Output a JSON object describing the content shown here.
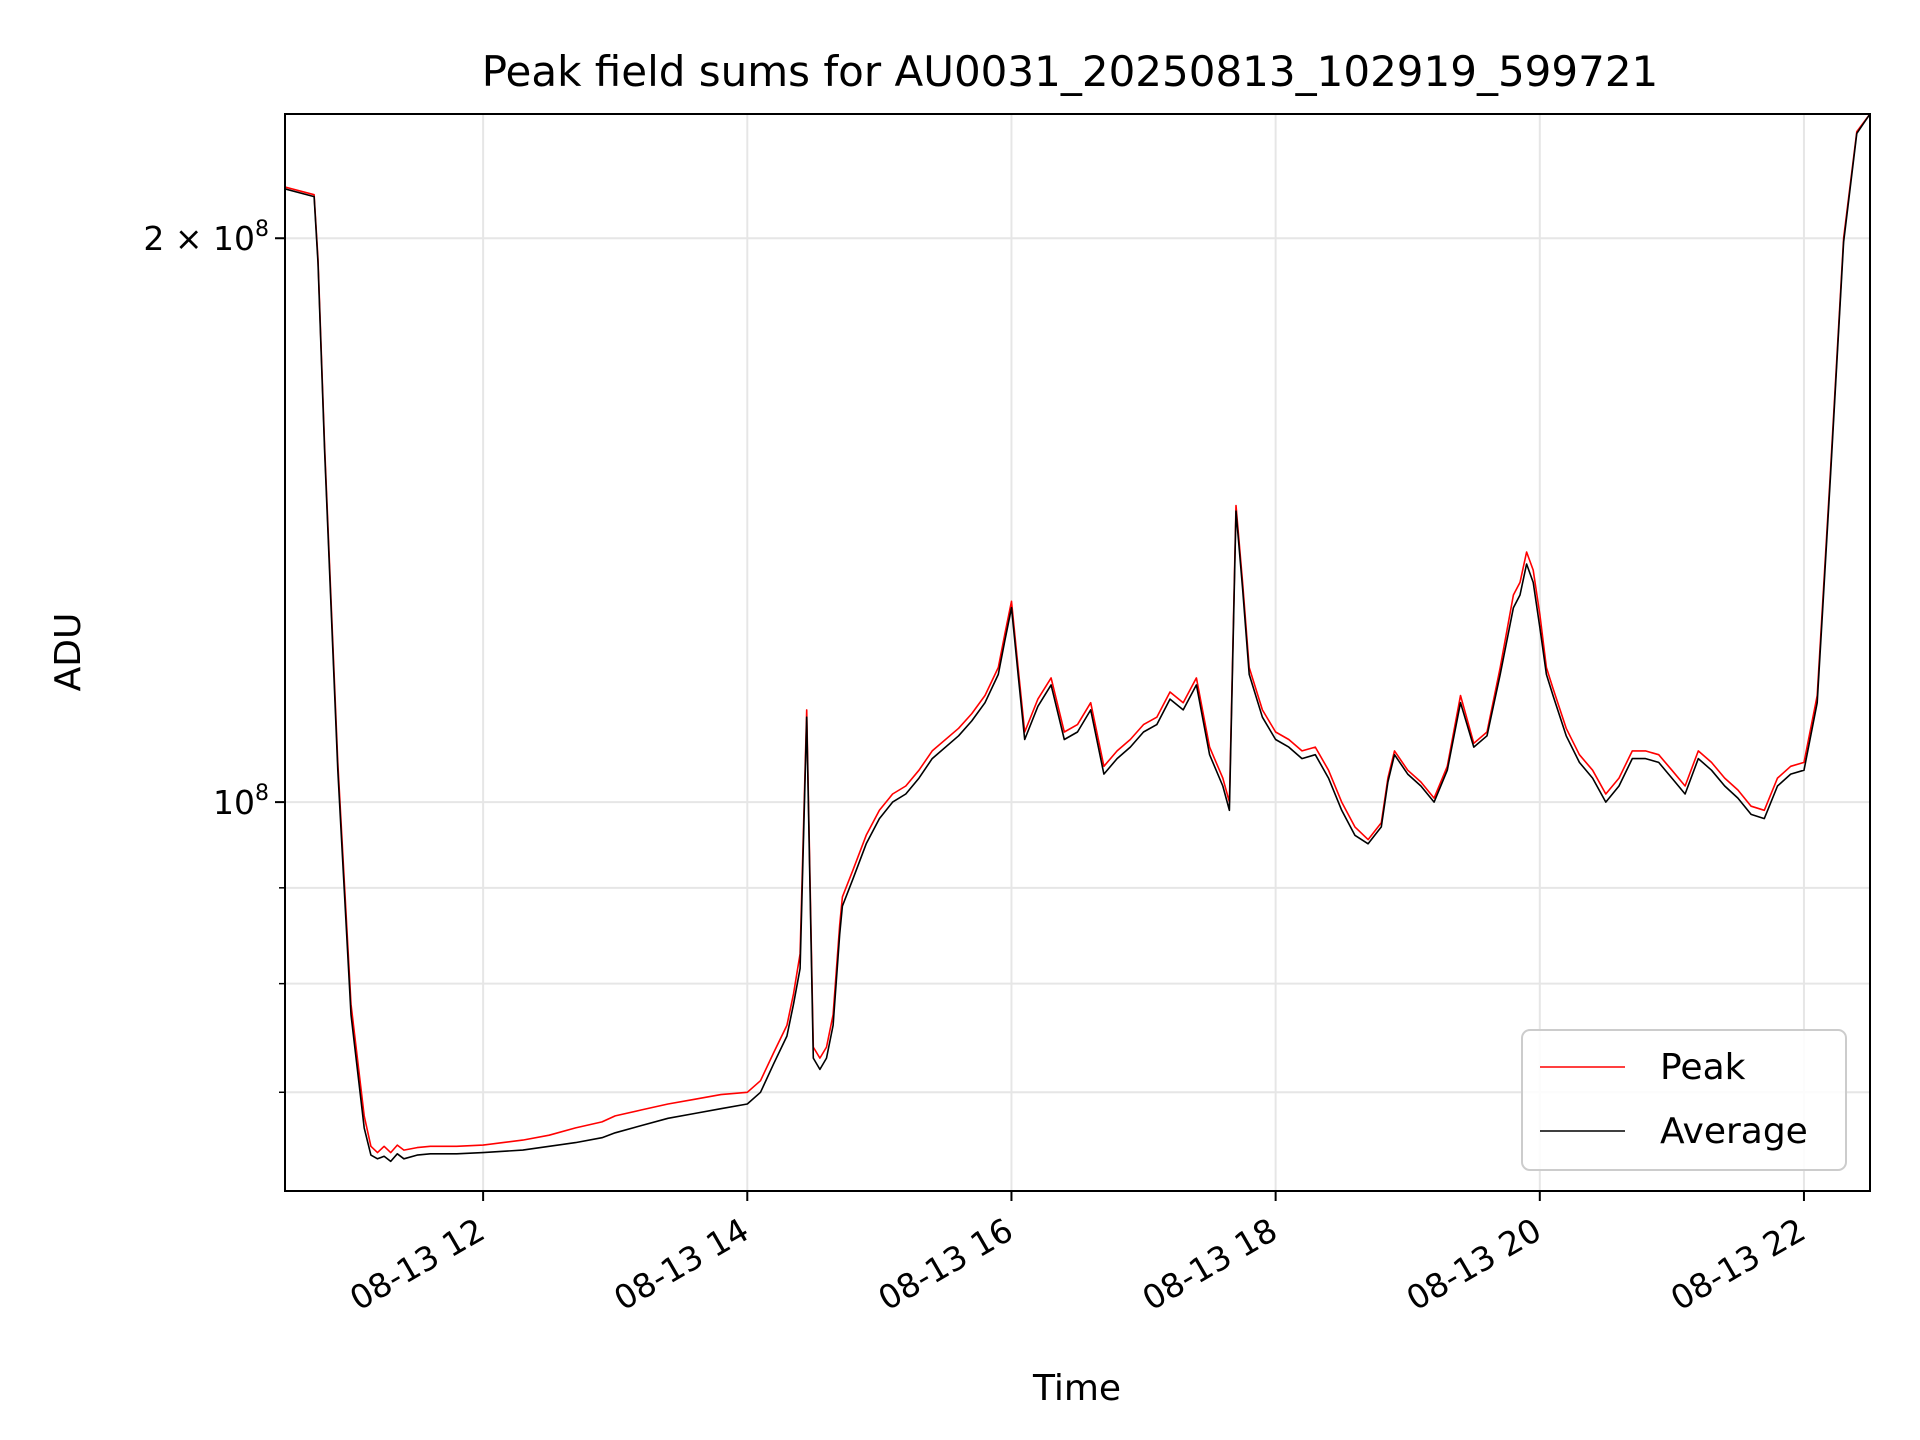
{
  "chart_data": {
    "type": "line",
    "title": "Peak field sums for AU0031_20250813_102919_599721",
    "xlabel": "Time",
    "ylabel": "ADU",
    "x_unit": "hours (time of day, 2025-08-13)",
    "xlim": [
      10.5,
      22.5
    ],
    "ylim": [
      62000000,
      233000000
    ],
    "yscale": "log",
    "grid": true,
    "legend_position": "lower right",
    "xticks": [
      {
        "value": 12,
        "label": "08-13 12"
      },
      {
        "value": 14,
        "label": "08-13 14"
      },
      {
        "value": 16,
        "label": "08-13 16"
      },
      {
        "value": 18,
        "label": "08-13 18"
      },
      {
        "value": 20,
        "label": "08-13 20"
      },
      {
        "value": 22,
        "label": "08-13 22"
      }
    ],
    "yticks_major": [
      {
        "value": 100000000,
        "base": "10",
        "exp": "8",
        "prefix": ""
      },
      {
        "value": 200000000,
        "base": "10",
        "exp": "8",
        "prefix": "2 × "
      }
    ],
    "yticks_minor": [
      70000000,
      80000000,
      90000000
    ],
    "series": [
      {
        "name": "Peak",
        "color": "#ff0000",
        "x": [
          10.5,
          10.72,
          10.75,
          10.8,
          10.9,
          11.0,
          11.1,
          11.15,
          11.2,
          11.25,
          11.3,
          11.35,
          11.4,
          11.5,
          11.6,
          11.8,
          12.0,
          12.15,
          12.3,
          12.5,
          12.7,
          12.9,
          13.0,
          13.2,
          13.4,
          13.6,
          13.8,
          14.0,
          14.1,
          14.2,
          14.3,
          14.35,
          14.4,
          14.45,
          14.5,
          14.55,
          14.6,
          14.65,
          14.7,
          14.72,
          14.8,
          14.9,
          15.0,
          15.1,
          15.2,
          15.3,
          15.4,
          15.6,
          15.7,
          15.8,
          15.9,
          15.95,
          16.0,
          16.05,
          16.1,
          16.2,
          16.3,
          16.4,
          16.5,
          16.6,
          16.7,
          16.8,
          16.9,
          17.0,
          17.1,
          17.2,
          17.3,
          17.4,
          17.5,
          17.6,
          17.65,
          17.7,
          17.75,
          17.8,
          17.9,
          18.0,
          18.1,
          18.2,
          18.3,
          18.4,
          18.5,
          18.6,
          18.7,
          18.8,
          18.85,
          18.9,
          19.0,
          19.1,
          19.2,
          19.3,
          19.4,
          19.5,
          19.6,
          19.7,
          19.8,
          19.85,
          19.9,
          19.95,
          20.0,
          20.05,
          20.1,
          20.2,
          20.3,
          20.4,
          20.5,
          20.6,
          20.7,
          20.8,
          20.9,
          21.0,
          21.1,
          21.2,
          21.3,
          21.4,
          21.5,
          21.6,
          21.7,
          21.8,
          21.9,
          22.0,
          22.1,
          22.2,
          22.3,
          22.4,
          22.5
        ],
        "y": [
          213000000,
          211000000,
          195000000,
          155000000,
          105000000,
          78000000,
          68000000,
          65500000,
          65000000,
          65500000,
          65000000,
          65600000,
          65200000,
          65400000,
          65500000,
          65500000,
          65600000,
          65800000,
          66000000,
          66400000,
          67000000,
          67500000,
          68000000,
          68500000,
          69000000,
          69400000,
          69800000,
          70000000,
          71000000,
          73500000,
          76000000,
          79000000,
          83000000,
          112000000,
          74000000,
          73000000,
          74000000,
          77000000,
          86000000,
          89000000,
          92000000,
          96000000,
          99000000,
          101000000,
          102000000,
          104000000,
          106500000,
          109500000,
          111500000,
          114000000,
          118000000,
          123000000,
          128000000,
          118000000,
          109000000,
          113500000,
          116500000,
          109000000,
          110000000,
          113000000,
          104500000,
          106500000,
          108000000,
          110000000,
          111000000,
          114500000,
          113000000,
          116500000,
          107000000,
          103000000,
          100000000,
          144000000,
          131000000,
          118000000,
          112000000,
          109000000,
          108000000,
          106500000,
          107000000,
          104000000,
          100000000,
          97000000,
          95500000,
          97500000,
          103000000,
          106500000,
          104000000,
          102500000,
          100500000,
          104500000,
          114000000,
          107500000,
          109000000,
          118000000,
          129000000,
          131000000,
          136000000,
          133000000,
          126000000,
          118000000,
          115000000,
          109500000,
          106000000,
          104000000,
          101000000,
          103000000,
          106500000,
          106500000,
          106000000,
          104000000,
          102000000,
          106500000,
          105000000,
          103000000,
          101500000,
          99500000,
          99000000,
          103000000,
          104500000,
          105000000,
          114000000,
          150000000,
          200000000,
          228000000,
          233000000
        ]
      },
      {
        "name": "Average",
        "color": "#000000",
        "x": [
          10.5,
          10.72,
          10.75,
          10.8,
          10.9,
          11.0,
          11.1,
          11.15,
          11.2,
          11.25,
          11.3,
          11.35,
          11.4,
          11.5,
          11.6,
          11.8,
          12.0,
          12.15,
          12.3,
          12.5,
          12.7,
          12.9,
          13.0,
          13.2,
          13.4,
          13.6,
          13.8,
          14.0,
          14.1,
          14.2,
          14.3,
          14.35,
          14.4,
          14.45,
          14.5,
          14.55,
          14.6,
          14.65,
          14.7,
          14.72,
          14.8,
          14.9,
          15.0,
          15.1,
          15.2,
          15.3,
          15.4,
          15.6,
          15.7,
          15.8,
          15.9,
          15.95,
          16.0,
          16.05,
          16.1,
          16.2,
          16.3,
          16.4,
          16.5,
          16.6,
          16.7,
          16.8,
          16.9,
          17.0,
          17.1,
          17.2,
          17.3,
          17.4,
          17.5,
          17.6,
          17.65,
          17.7,
          17.75,
          17.8,
          17.9,
          18.0,
          18.1,
          18.2,
          18.3,
          18.4,
          18.5,
          18.6,
          18.7,
          18.8,
          18.85,
          18.9,
          19.0,
          19.1,
          19.2,
          19.3,
          19.4,
          19.5,
          19.6,
          19.7,
          19.8,
          19.85,
          19.9,
          19.95,
          20.0,
          20.05,
          20.1,
          20.2,
          20.3,
          20.4,
          20.5,
          20.6,
          20.7,
          20.8,
          20.9,
          21.0,
          21.1,
          21.2,
          21.3,
          21.4,
          21.5,
          21.6,
          21.7,
          21.8,
          21.9,
          22.0,
          22.1,
          22.2,
          22.3,
          22.4,
          22.5
        ],
        "y": [
          212500000,
          210500000,
          194000000,
          154000000,
          104000000,
          77000000,
          67000000,
          64800000,
          64500000,
          64700000,
          64300000,
          64900000,
          64500000,
          64800000,
          64900000,
          64900000,
          65000000,
          65100000,
          65200000,
          65500000,
          65800000,
          66200000,
          66600000,
          67200000,
          67800000,
          68200000,
          68600000,
          69000000,
          70000000,
          72500000,
          75000000,
          78000000,
          81500000,
          111000000,
          73000000,
          72000000,
          73000000,
          76000000,
          85000000,
          88000000,
          91000000,
          95000000,
          98000000,
          100000000,
          101000000,
          103000000,
          105500000,
          108500000,
          110500000,
          113000000,
          117000000,
          122000000,
          127000000,
          117000000,
          108000000,
          112500000,
          115500000,
          108000000,
          109000000,
          112000000,
          103500000,
          105500000,
          107000000,
          109000000,
          110000000,
          113500000,
          112000000,
          115500000,
          106000000,
          102000000,
          99000000,
          143000000,
          130000000,
          117000000,
          111000000,
          108000000,
          107000000,
          105500000,
          106000000,
          103000000,
          99000000,
          96000000,
          95000000,
          97000000,
          102500000,
          106000000,
          103500000,
          102000000,
          100000000,
          104000000,
          113000000,
          107000000,
          108500000,
          117000000,
          127000000,
          129000000,
          134000000,
          131000000,
          124000000,
          117000000,
          114000000,
          108500000,
          105000000,
          103000000,
          100000000,
          102000000,
          105500000,
          105500000,
          105000000,
          103000000,
          101000000,
          105500000,
          104000000,
          102000000,
          100500000,
          98500000,
          98000000,
          102000000,
          103500000,
          104000000,
          113000000,
          149000000,
          199000000,
          227500000,
          233000000
        ]
      }
    ]
  }
}
